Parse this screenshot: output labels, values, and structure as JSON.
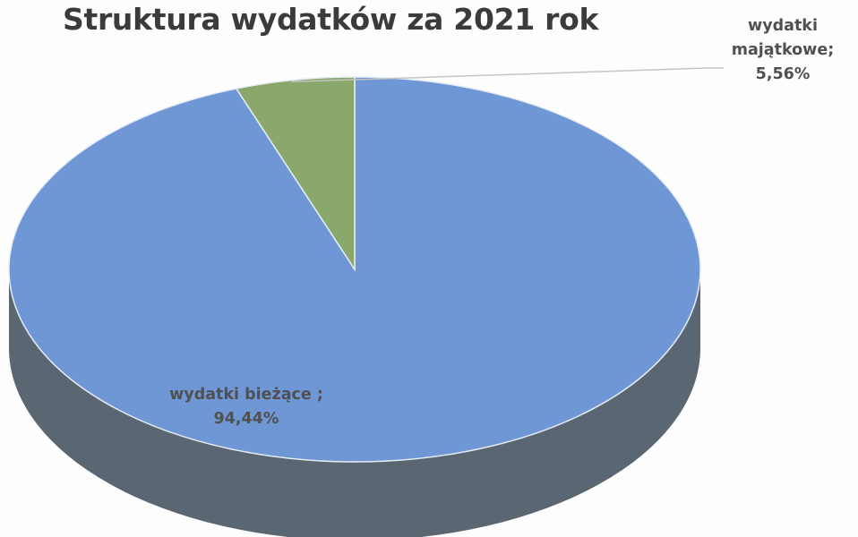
{
  "chart_data": {
    "type": "pie",
    "title": "Struktura wydatków za 2021 rok",
    "slices": [
      {
        "name": "wydatki bieżące",
        "label_line1": "wydatki bieżące ;",
        "label_line2": "94,44%",
        "value": 94.44,
        "color": "#6f97d6",
        "side_color": "#5b6673"
      },
      {
        "name": "wydatki majątkowe",
        "label_line1": "wydatki",
        "label_line2": "majątkowe;",
        "label_line3": "5,56%",
        "value": 5.56,
        "color": "#8aa86c",
        "side_color": "#5f7448"
      }
    ],
    "style": "3d",
    "start_angle_deg": 0,
    "direction": "clockwise"
  }
}
